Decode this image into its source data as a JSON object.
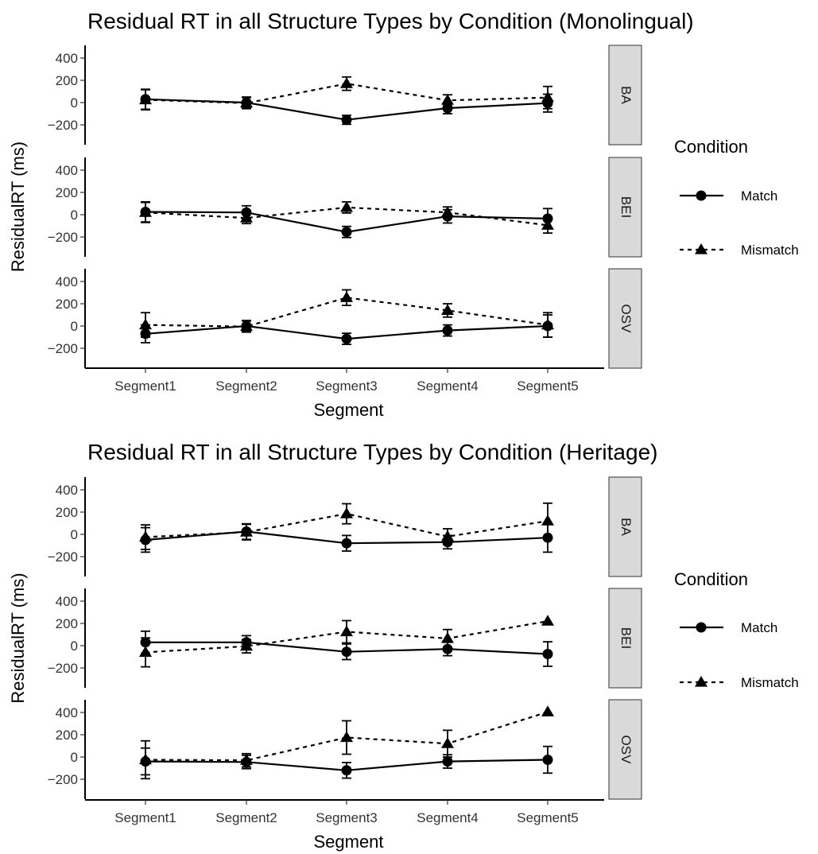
{
  "chart_data": [
    {
      "type": "line",
      "title": "Residual RT in all Structure Types by Condition (Monolingual)",
      "xlabel": "Segment",
      "ylabel": "ResidualRT (ms)",
      "categories": [
        "Segment1",
        "Segment2",
        "Segment3",
        "Segment4",
        "Segment5"
      ],
      "yticks": [
        400,
        200,
        0,
        -200
      ],
      "ylim": [
        -400,
        500
      ],
      "legend": {
        "title": "Condition",
        "position": "right",
        "entries": [
          {
            "label": "Match",
            "marker": "circle",
            "line": "solid"
          },
          {
            "label": "Mismatch",
            "marker": "triangle",
            "line": "dashed"
          }
        ]
      },
      "facets": [
        {
          "label": "BA",
          "series": [
            {
              "name": "Match",
              "values": [
                30,
                0,
                -155,
                -50,
                -5
              ],
              "err": [
                90,
                50,
                40,
                50,
                80
              ]
            },
            {
              "name": "Mismatch",
              "values": [
                25,
                -5,
                170,
                20,
                45
              ],
              "err": [
                90,
                50,
                60,
                50,
                100
              ]
            }
          ]
        },
        {
          "label": "BEI",
          "series": [
            {
              "name": "Match",
              "values": [
                25,
                20,
                -155,
                -15,
                -35
              ],
              "err": [
                90,
                60,
                50,
                60,
                90
              ]
            },
            {
              "name": "Mismatch",
              "values": [
                20,
                -30,
                65,
                20,
                -95
              ],
              "err": [
                90,
                50,
                50,
                50,
                70
              ]
            }
          ]
        },
        {
          "label": "OSV",
          "series": [
            {
              "name": "Match",
              "values": [
                -70,
                0,
                -115,
                -40,
                0
              ],
              "err": [
                80,
                50,
                50,
                50,
                100
              ]
            },
            {
              "name": "Mismatch",
              "values": [
                10,
                -5,
                255,
                140,
                10
              ],
              "err": [
                110,
                50,
                70,
                60,
                110
              ]
            }
          ]
        }
      ]
    },
    {
      "type": "line",
      "title": "Residual RT in all Structure Types by Condition (Heritage)",
      "xlabel": "Segment",
      "ylabel": "ResidualRT (ms)",
      "categories": [
        "Segment1",
        "Segment2",
        "Segment3",
        "Segment4",
        "Segment5"
      ],
      "yticks": [
        400,
        200,
        0,
        -200
      ],
      "ylim": [
        -400,
        500
      ],
      "legend": {
        "title": "Condition",
        "position": "right",
        "entries": [
          {
            "label": "Match",
            "marker": "circle",
            "line": "solid"
          },
          {
            "label": "Mismatch",
            "marker": "triangle",
            "line": "dashed"
          }
        ]
      },
      "facets": [
        {
          "label": "BA",
          "series": [
            {
              "name": "Match",
              "values": [
                -50,
                25,
                -80,
                -70,
                -30
              ],
              "err": [
                110,
                70,
                70,
                60,
                130
              ]
            },
            {
              "name": "Mismatch",
              "values": [
                -25,
                20,
                185,
                -20,
                120
              ],
              "err": [
                110,
                70,
                90,
                70,
                160
              ]
            }
          ]
        },
        {
          "label": "BEI",
          "series": [
            {
              "name": "Match",
              "values": [
                30,
                30,
                -55,
                -30,
                -75
              ],
              "err": [
                100,
                60,
                70,
                60,
                110
              ]
            },
            {
              "name": "Mismatch",
              "values": [
                -60,
                -5,
                125,
                65,
                220
              ],
              "err": [
                130,
                60,
                100,
                80,
                0
              ]
            }
          ]
        },
        {
          "label": "OSV",
          "series": [
            {
              "name": "Match",
              "values": [
                -40,
                -45,
                -120,
                -40,
                -25
              ],
              "err": [
                120,
                60,
                70,
                60,
                120
              ]
            },
            {
              "name": "Mismatch",
              "values": [
                -25,
                -30,
                175,
                120,
                405
              ],
              "err": [
                170,
                60,
                150,
                120,
                0
              ]
            }
          ]
        }
      ]
    }
  ]
}
